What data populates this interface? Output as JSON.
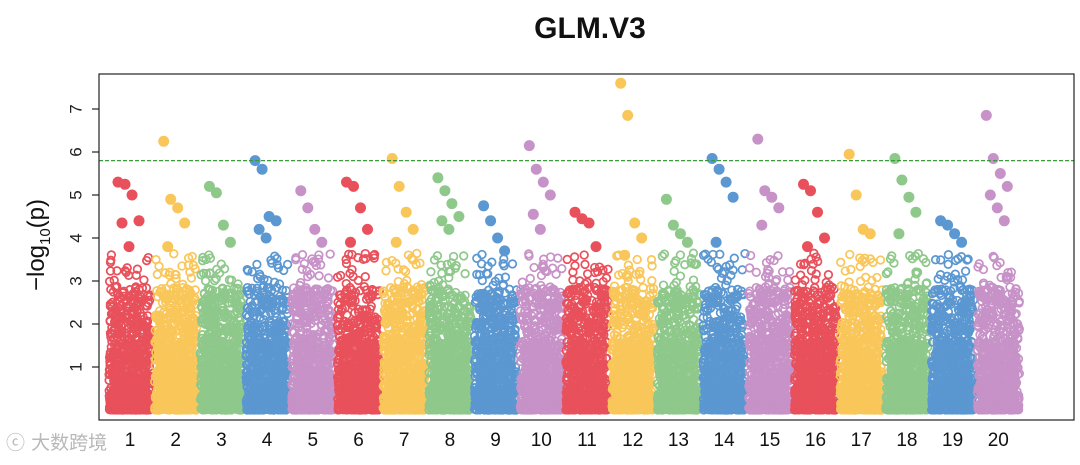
{
  "chart_data": {
    "type": "scatter",
    "subtype": "manhattan",
    "title": "GLM.V3",
    "ylabel_parts": [
      "−log",
      "10",
      "(p)"
    ],
    "ylim": [
      0,
      8
    ],
    "yticks": [
      1,
      2,
      3,
      4,
      5,
      6,
      7
    ],
    "threshold": 5.8,
    "threshold_color": "#3a9a3a",
    "palette": [
      "#E8505B",
      "#F9C65A",
      "#8EC88A",
      "#5B97D1",
      "#C792C7"
    ],
    "chromosomes": [
      {
        "label": "1",
        "peak_points": [
          5.3,
          5.25,
          5.0,
          4.4,
          4.35,
          3.8
        ]
      },
      {
        "label": "2",
        "peak_points": [
          6.25,
          4.9,
          4.7,
          4.35,
          3.8
        ]
      },
      {
        "label": "3",
        "peak_points": [
          5.2,
          5.05,
          4.3,
          3.9
        ]
      },
      {
        "label": "4",
        "peak_points": [
          5.8,
          5.6,
          4.5,
          4.4,
          4.2,
          4.0
        ]
      },
      {
        "label": "5",
        "peak_points": [
          5.1,
          4.7,
          4.2,
          3.9
        ]
      },
      {
        "label": "6",
        "peak_points": [
          5.3,
          5.2,
          4.7,
          4.2,
          3.9
        ]
      },
      {
        "label": "7",
        "peak_points": [
          5.85,
          5.2,
          4.6,
          4.2,
          3.9
        ]
      },
      {
        "label": "8",
        "peak_points": [
          5.4,
          5.1,
          4.8,
          4.5,
          4.4,
          4.2
        ]
      },
      {
        "label": "9",
        "peak_points": [
          4.75,
          4.4,
          4.0,
          3.7
        ]
      },
      {
        "label": "10",
        "peak_points": [
          6.15,
          5.6,
          5.3,
          5.0,
          4.55,
          4.2
        ]
      },
      {
        "label": "11",
        "peak_points": [
          4.6,
          4.45,
          4.35,
          3.8
        ]
      },
      {
        "label": "12",
        "peak_points": [
          7.6,
          6.85,
          4.35,
          4.0,
          3.6
        ]
      },
      {
        "label": "13",
        "peak_points": [
          4.9,
          4.3,
          4.1,
          3.9
        ]
      },
      {
        "label": "14",
        "peak_points": [
          5.85,
          5.6,
          5.3,
          4.95,
          3.9
        ]
      },
      {
        "label": "15",
        "peak_points": [
          6.3,
          5.1,
          4.95,
          4.7,
          4.3
        ]
      },
      {
        "label": "16",
        "peak_points": [
          5.25,
          5.1,
          4.6,
          4.0,
          3.8
        ]
      },
      {
        "label": "17",
        "peak_points": [
          5.95,
          5.0,
          4.2,
          4.1
        ]
      },
      {
        "label": "18",
        "peak_points": [
          5.85,
          5.35,
          4.95,
          4.6,
          4.1
        ]
      },
      {
        "label": "19",
        "peak_points": [
          4.4,
          4.3,
          4.1,
          3.9
        ]
      },
      {
        "label": "20",
        "peak_points": [
          6.85,
          5.85,
          5.5,
          5.2,
          5.0,
          4.7,
          4.4
        ]
      }
    ]
  },
  "watermark": {
    "text": "大数跨境"
  }
}
